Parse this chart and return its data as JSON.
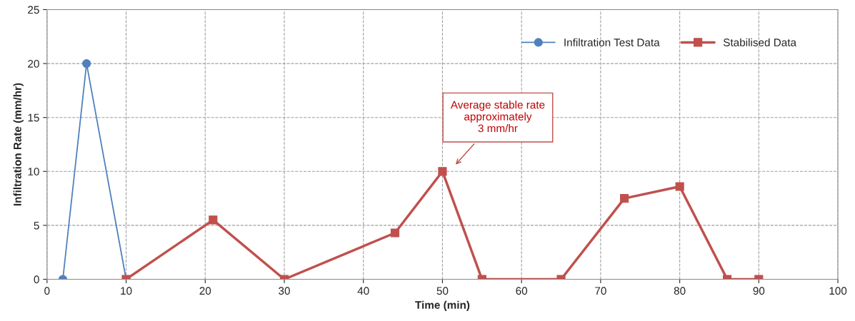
{
  "chart_data": {
    "type": "line",
    "xlabel": "Time (min)",
    "ylabel": "Infiltration Rate (mm/hr)",
    "xlim": [
      0,
      100
    ],
    "xticks": [
      0,
      10,
      20,
      30,
      40,
      50,
      60,
      70,
      80,
      90,
      100
    ],
    "ylim": [
      0,
      25
    ],
    "yticks": [
      0,
      5,
      10,
      15,
      20,
      25
    ],
    "grid": true,
    "legend": "top right",
    "series": [
      {
        "name": "Infiltration Test Data",
        "color": "#4f81bd",
        "marker": "circle",
        "x": [
          2,
          5,
          10
        ],
        "values": [
          0,
          20,
          0
        ]
      },
      {
        "name": "Stabilised Data",
        "color": "#c0504d",
        "marker": "square",
        "x": [
          10,
          21,
          30,
          44,
          50,
          55,
          65,
          73,
          80,
          86,
          90
        ],
        "values": [
          0,
          5.5,
          0,
          4.3,
          10,
          0,
          0,
          7.5,
          8.6,
          0,
          0
        ]
      }
    ],
    "annotations": [
      "Average stable rate\napproximately\n3 mm/hr"
    ]
  }
}
